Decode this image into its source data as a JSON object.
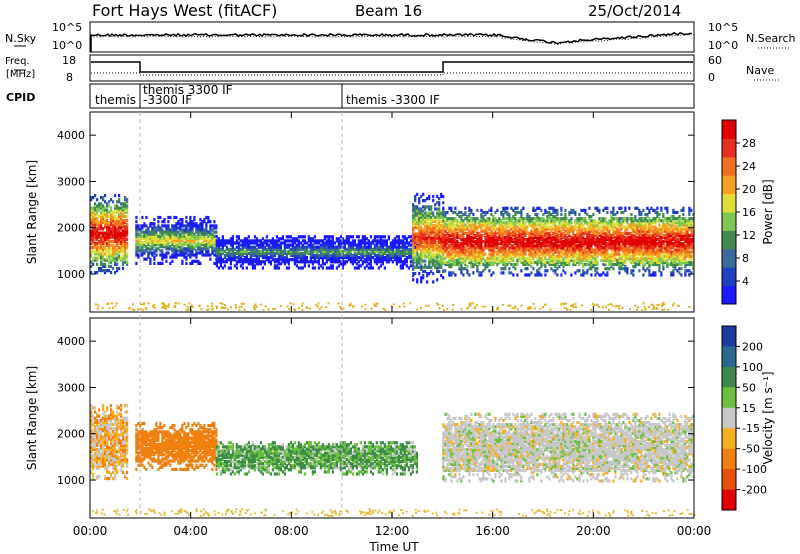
{
  "header": {
    "radar": "Fort Hays West (fitACF)",
    "beam": "Beam 16",
    "date": "25/Oct/2014"
  },
  "sky_panel": {
    "left_label": "N.Sky",
    "left_ticks": [
      "10^5",
      "10^0"
    ],
    "right_label": "N.Search",
    "right_ticks": [
      "10^5",
      "10^0"
    ]
  },
  "freq_panel": {
    "left_label_1": "Freq.",
    "left_label_2": "[MHz]",
    "left_ticks": [
      "18",
      "8"
    ],
    "right_label": "Nave",
    "right_ticks": [
      "60",
      "0"
    ]
  },
  "cpid_panel": {
    "label": "CPID",
    "segments": [
      {
        "text": "themis",
        "start_hour": 0
      },
      {
        "text": "themis 3300 IF",
        "text2": "-3300 IF",
        "start_hour": 2
      },
      {
        "text": "themis -3300 IF",
        "start_hour": 10
      }
    ]
  },
  "power_panel": {
    "ylabel": "Slant Range [km]",
    "yticks": [
      "1000",
      "2000",
      "3000",
      "4000"
    ],
    "colorbar_label": "Power [dB]",
    "colorbar_ticks": [
      "4",
      "8",
      "12",
      "16",
      "20",
      "24",
      "28"
    ]
  },
  "velocity_panel": {
    "ylabel": "Slant Range [km]",
    "yticks": [
      "1000",
      "2000",
      "3000",
      "4000"
    ],
    "colorbar_label": "Velocity [m s⁻¹]",
    "colorbar_ticks": [
      "200",
      "100",
      "50",
      "15",
      "-15",
      "-50",
      "-100",
      "-200"
    ]
  },
  "x_axis": {
    "label": "Time UT",
    "ticks": [
      "00:00",
      "04:00",
      "08:00",
      "12:00",
      "16:00",
      "20:00",
      "00:00"
    ]
  },
  "colors": {
    "power_scale": [
      "#1a1aff",
      "#2040c0",
      "#3a6a9a",
      "#3f8a4f",
      "#7dc850",
      "#dede3a",
      "#f5a020",
      "#f07020",
      "#e83020",
      "#e00000"
    ],
    "velocity_scale": [
      "#1e3ca0",
      "#2a6a90",
      "#3c8a4a",
      "#6cc040",
      "#c8c8c8",
      "#f5b020",
      "#f08010",
      "#e85010",
      "#e00000"
    ]
  },
  "chart_data": {
    "type": "heatmap",
    "x_range_hours": [
      0,
      24
    ],
    "y_range_km": [
      180,
      4500
    ],
    "power_regions": [
      {
        "t0": 0.0,
        "t1": 1.5,
        "r0": 1000,
        "r1": 2700,
        "peak_db": 30
      },
      {
        "t0": 1.8,
        "t1": 5.0,
        "r0": 1200,
        "r1": 2200,
        "peak_db": 18
      },
      {
        "t0": 5.0,
        "t1": 13.0,
        "r0": 1100,
        "r1": 1800,
        "peak_db": 12
      },
      {
        "t0": 12.8,
        "t1": 14.0,
        "r0": 800,
        "r1": 2700,
        "peak_db": 26
      },
      {
        "t0": 14.0,
        "t1": 24.0,
        "r0": 950,
        "r1": 2400,
        "peak_db": 30
      }
    ],
    "velocity_regions": [
      {
        "t0": 0.0,
        "t1": 1.5,
        "r0": 1000,
        "r1": 2600,
        "v": -20
      },
      {
        "t0": 1.8,
        "t1": 5.0,
        "r0": 1200,
        "r1": 2200,
        "v": -50
      },
      {
        "t0": 5.0,
        "t1": 13.0,
        "r0": 1100,
        "r1": 1800,
        "v": 30
      },
      {
        "t0": 14.0,
        "t1": 24.0,
        "r0": 950,
        "r1": 2400,
        "v": 0
      }
    ]
  }
}
